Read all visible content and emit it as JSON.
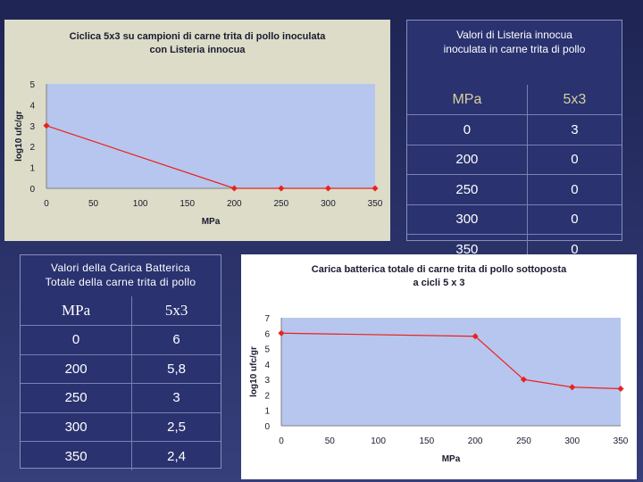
{
  "chart_data": [
    {
      "type": "line",
      "title_lines": [
        "Ciclica 5x3 su campioni di carne trita di pollo inoculata",
        "con Listeria innocua"
      ],
      "xlabel": "MPa",
      "ylabel": "log10 ufc/gr",
      "x": [
        0,
        200,
        250,
        300,
        350
      ],
      "values": [
        3,
        0,
        0,
        0,
        0
      ],
      "xlim": [
        0,
        350
      ],
      "ylim": [
        0,
        5
      ],
      "xticks": [
        0,
        50,
        100,
        150,
        200,
        250,
        300,
        350
      ],
      "yticks": [
        0,
        1,
        2,
        3,
        4,
        5
      ],
      "grid": false,
      "line_color": "#e8231e",
      "plot_color": "#b7c6ee"
    },
    {
      "type": "line",
      "title_lines": [
        "Carica batterica totale di carne trita di pollo sottoposta",
        "a cicli 5 x 3"
      ],
      "xlabel": "MPa",
      "ylabel": "log10 ufc/gr",
      "x": [
        0,
        200,
        250,
        300,
        350
      ],
      "values": [
        6,
        5.8,
        3,
        2.5,
        2.4
      ],
      "xlim": [
        0,
        350
      ],
      "ylim": [
        0,
        7
      ],
      "xticks": [
        0,
        50,
        100,
        150,
        200,
        250,
        300,
        350
      ],
      "yticks": [
        0,
        1,
        2,
        3,
        4,
        5,
        6,
        7
      ],
      "grid": false,
      "line_color": "#e8231e",
      "plot_color": "#b7c6ee"
    }
  ],
  "table1": {
    "title_lines": [
      "Valori di Listeria innocua",
      "inoculata in carne trita di pollo"
    ],
    "headers": [
      "MPa",
      "5x3"
    ],
    "rows": [
      [
        "0",
        "3"
      ],
      [
        "200",
        "0"
      ],
      [
        "250",
        "0"
      ],
      [
        "300",
        "0"
      ],
      [
        "350",
        "0"
      ]
    ]
  },
  "table2": {
    "title_lines": [
      "Valori della Carica Batterica",
      "Totale della carne trita di pollo"
    ],
    "headers": [
      "MPa",
      "5x3"
    ],
    "rows": [
      [
        "0",
        "6"
      ],
      [
        "200",
        "5,8"
      ],
      [
        "250",
        "3"
      ],
      [
        "300",
        "2,5"
      ],
      [
        "350",
        "2,4"
      ]
    ]
  }
}
